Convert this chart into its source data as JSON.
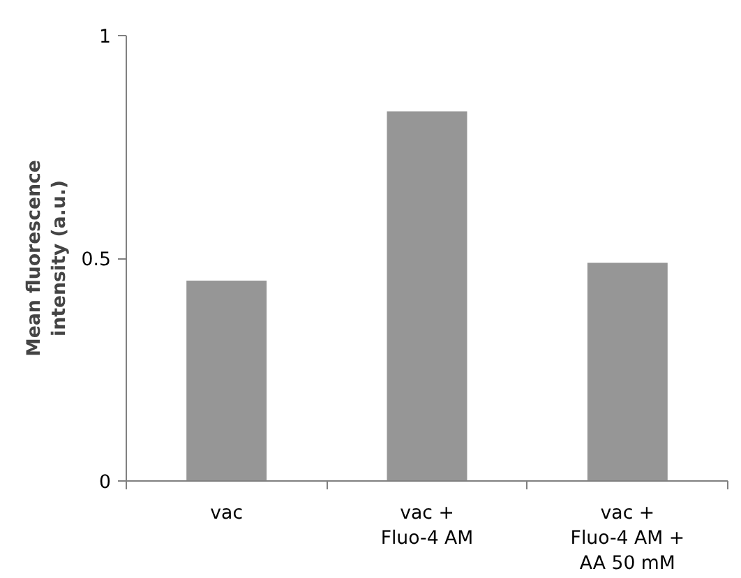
{
  "chart_data": {
    "type": "bar",
    "ylabel": "Mean fluorescence intensity (a.u.)",
    "categories": [
      "vac",
      "vac + Fluo-4 AM",
      "vac + Fluo-4 AM + AA 50 mM"
    ],
    "values": [
      0.45,
      0.83,
      0.49
    ],
    "color": "#969696",
    "ylim": [
      0,
      1
    ],
    "yticks": [
      0,
      0.5,
      1
    ],
    "grid": false
  }
}
